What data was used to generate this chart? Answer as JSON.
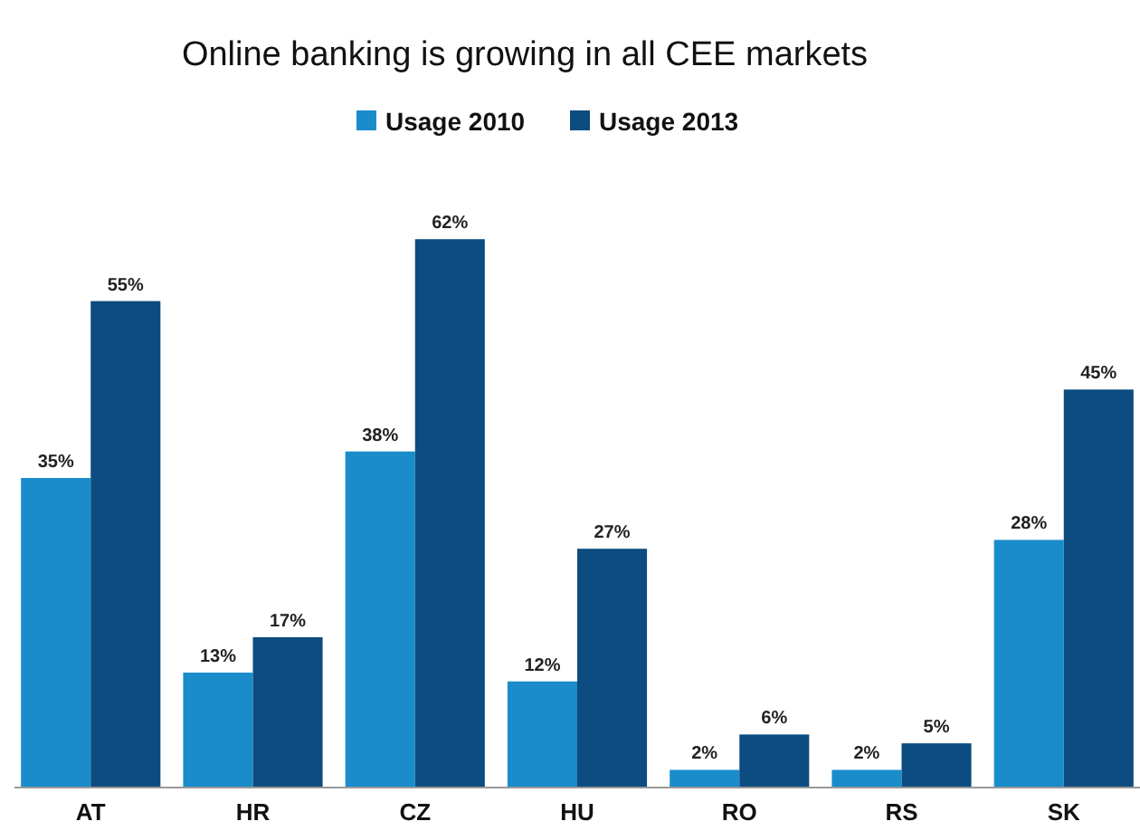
{
  "chart_data": {
    "type": "bar",
    "title": "Online banking is growing in all CEE markets",
    "categories": [
      "AT",
      "HR",
      "CZ",
      "HU",
      "RO",
      "RS",
      "SK"
    ],
    "series": [
      {
        "name": "Usage 2010",
        "color": "#1a8ccb",
        "values": [
          35,
          13,
          38,
          12,
          2,
          2,
          28
        ],
        "value_labels": [
          "35%",
          "13%",
          "38%",
          "12%",
          "2%",
          "2%",
          "28%"
        ]
      },
      {
        "name": "Usage 2013",
        "color": "#0c4c80",
        "values": [
          55,
          17,
          62,
          27,
          6,
          5,
          45
        ],
        "value_labels": [
          "55%",
          "17%",
          "62%",
          "27%",
          "6%",
          "5%",
          "45%"
        ]
      }
    ],
    "legend": "top"
  }
}
